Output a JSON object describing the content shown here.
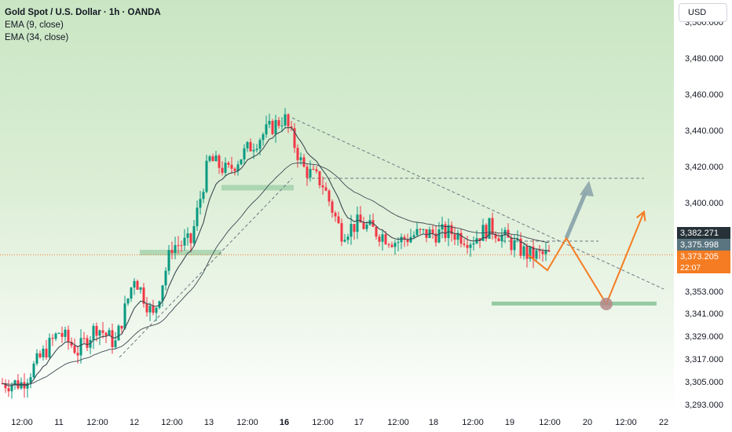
{
  "legend": {
    "title": "Gold Spot / U.S. Dollar · 1h · OANDA",
    "ema_fast": "EMA (9, close)",
    "ema_slow": "EMA (34, close)"
  },
  "currency_button": "USD",
  "price_axis": {
    "ticks": [
      "3,500.000",
      "3,480.000",
      "3,460.000",
      "3,440.000",
      "3,420.000",
      "3,400.000",
      "3,353.000",
      "3,341.000",
      "3,329.000",
      "3,317.000",
      "3,305.000",
      "3,293.000"
    ]
  },
  "price_tags": {
    "ema_slow": {
      "value": "3,382.271",
      "color": "#263238"
    },
    "ema_fast": {
      "value": "3,375.998",
      "color": "#5a7580"
    },
    "last_price": {
      "value": "3,373.205",
      "countdown": "22:07",
      "color": "#f57c22"
    }
  },
  "time_axis": {
    "labels": [
      {
        "text": "12:00",
        "bold": false
      },
      {
        "text": "11",
        "bold": false
      },
      {
        "text": "12:00",
        "bold": false
      },
      {
        "text": "12",
        "bold": false
      },
      {
        "text": "12:00",
        "bold": false
      },
      {
        "text": "13",
        "bold": false
      },
      {
        "text": "12:00",
        "bold": false
      },
      {
        "text": "16",
        "bold": true
      },
      {
        "text": "12:00",
        "bold": false
      },
      {
        "text": "17",
        "bold": false
      },
      {
        "text": "12:00",
        "bold": false
      },
      {
        "text": "18",
        "bold": false
      },
      {
        "text": "12:00",
        "bold": false
      },
      {
        "text": "19",
        "bold": false
      },
      {
        "text": "12:00",
        "bold": false
      },
      {
        "text": "20",
        "bold": false
      },
      {
        "text": "12:00",
        "bold": false
      },
      {
        "text": "22",
        "bold": false
      }
    ]
  },
  "colors": {
    "up": "#089981",
    "down": "#f23645",
    "ema": "#3b4a52",
    "projection": "#f57c22",
    "target_arrow": "#8fa9ae",
    "support_zone": "#8cc79a"
  },
  "chart_data": {
    "type": "candlestick",
    "symbol": "Gold Spot / U.S. Dollar",
    "interval": "1h",
    "exchange": "OANDA",
    "price_points": [
      [
        "10 12:00",
        3305
      ],
      [
        "11 00:00",
        3332
      ],
      [
        "11 06:00",
        3322
      ],
      [
        "11 12:00",
        3335
      ],
      [
        "11 18:00",
        3326
      ],
      [
        "12 00:00",
        3362
      ],
      [
        "12 06:00",
        3340
      ],
      [
        "12 12:00",
        3378
      ],
      [
        "12 18:00",
        3380
      ],
      [
        "13 00:00",
        3425
      ],
      [
        "13 06:00",
        3418
      ],
      [
        "13 12:00",
        3430
      ],
      [
        "13 18:00",
        3440
      ],
      [
        "16 00:00",
        3448
      ],
      [
        "16 06:00",
        3420
      ],
      [
        "16 12:00",
        3412
      ],
      [
        "16 18:00",
        3385
      ],
      [
        "17 00:00",
        3390
      ],
      [
        "17 12:00",
        3380
      ],
      [
        "17 18:00",
        3384
      ],
      [
        "18 06:00",
        3385
      ],
      [
        "18 12:00",
        3381
      ],
      [
        "18 18:00",
        3388
      ],
      [
        "19 00:00",
        3380
      ],
      [
        "19 06:00",
        3373
      ]
    ],
    "last_price": 3373.205,
    "ema_9": 3375.998,
    "ema_34": 3382.271,
    "key_levels": {
      "resistance": 3415,
      "support": 3347,
      "highlighted_zone_1": 3415,
      "highlighted_zone_2": 3375
    },
    "projection_path": [
      [
        "19 06:00",
        3373
      ],
      [
        "19 12:00",
        3365
      ],
      [
        "19 18:00",
        3382
      ],
      [
        "20 06:00",
        3347
      ],
      [
        "20 18:00",
        3396
      ]
    ],
    "alternative_path": [
      [
        "19 18:00",
        3382
      ],
      [
        "20 00:00",
        3413
      ]
    ]
  }
}
